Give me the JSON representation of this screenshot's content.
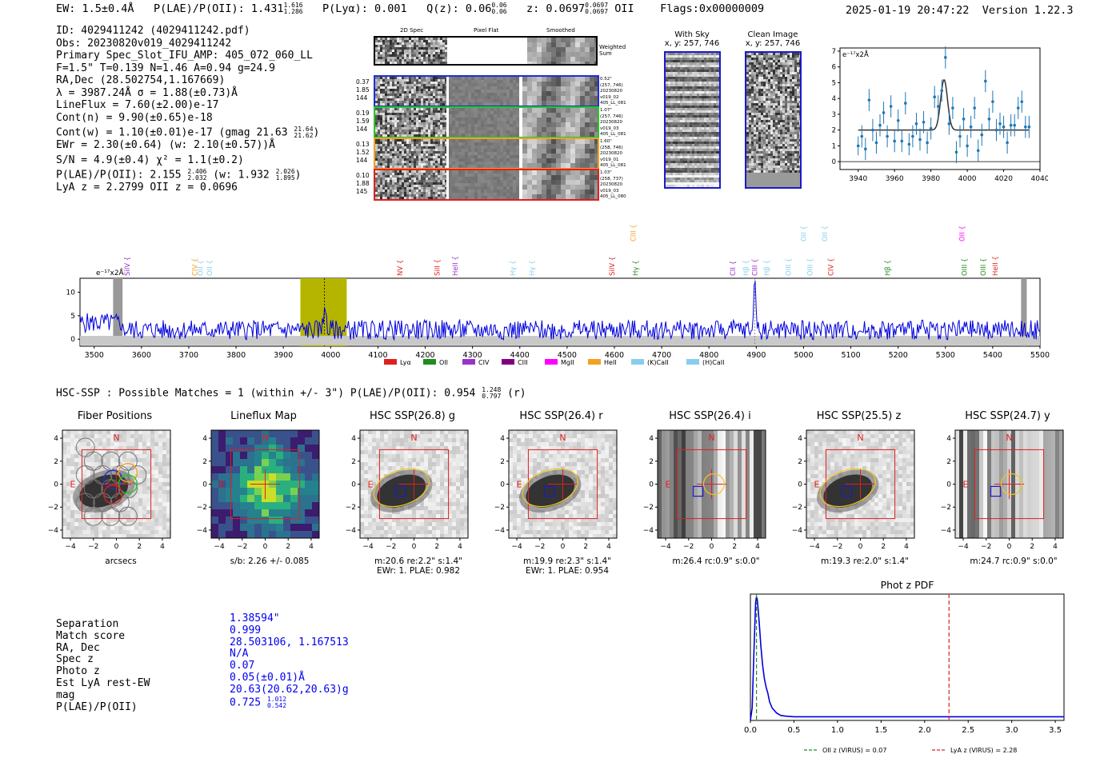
{
  "header": {
    "ew": "EW: 1.5±0.4Å",
    "plae_label": "P(LAE)/P(OII):",
    "plae_val": "1.431",
    "plae_hi": "1.616",
    "plae_lo": "1.286",
    "plya": "P(Lyα): 0.001",
    "qz_label": "Q(z): 0.06",
    "qz_hi": "0.06",
    "qz_lo": "0.06",
    "z_label": "z: 0.0697",
    "z_hi": "0.0697",
    "z_lo": "0.0697",
    "z_line": "OII",
    "flags": "Flags:0x00000009",
    "datetime": "2025-01-19 20:47:22",
    "version": "Version 1.22.3"
  },
  "info": {
    "id": "ID: 4029411242 (4029411242.pdf)",
    "obs": "Obs: 20230820v019_4029411242",
    "primary": "Primary Spec_Slot_IFU_AMP: 405_072_060_LL",
    "fiber": "F=1.5\"  T=0.139  N=1.46  A=0.94  g=24.9",
    "radec": "RA,Dec (28.502754,1.167669)",
    "lambda": "λ = 3987.24Å  σ = 1.88(±0.73)Å",
    "lineflux": "LineFlux = 7.60(±2.00)e-17",
    "contn": "Cont(n) = 9.90(±0.65)e-18",
    "contw": "Cont(w) = 1.10(±0.01)e-17 (gmag 21.63",
    "contw_hi": "21.64",
    "contw_lo": "21.62",
    "ewr": "EWr = 2.30(±0.64) (w: 2.10(±0.57))Å",
    "sn": "S/N = 4.9(±0.4)  χ² = 1.1(±0.2)",
    "plae": "P(LAE)/P(OII): 2.155",
    "plae_hi": "2.406",
    "plae_lo": "2.032",
    "plae_w": "(w: 1.932",
    "plae_w_hi": "2.026",
    "plae_w_lo": "1.895",
    "lyaz": "LyA z = 2.2799  OII z = 0.0696"
  },
  "stamps": {
    "col_2d": "2D Spec",
    "col_flat": "Pixel Flat",
    "col_smooth": "Smoothed",
    "weighted": "Weighted Sum",
    "rows": [
      {
        "a": "0.37",
        "b": "1.85",
        "c": "144",
        "n1": "0.52\"",
        "n2": "(257, 746)",
        "n3": "20230820",
        "n4": "v019_02",
        "n5": "405_LL_081",
        "color": "#1f2fd6"
      },
      {
        "a": "0.19",
        "b": "1.59",
        "c": "144",
        "n1": "1.07\"",
        "n2": "(257, 746)",
        "n3": "20230820",
        "n4": "v019_03",
        "n5": "405_LL_081",
        "color": "#22cc22"
      },
      {
        "a": "0.13",
        "b": "1.52",
        "c": "144",
        "n1": "1.60\"",
        "n2": "(258, 746)",
        "n3": "20230820",
        "n4": "v019_01",
        "n5": "405_LL_081",
        "color": "#f5a020"
      },
      {
        "a": "0.10",
        "b": "1.88",
        "c": "145",
        "n1": "1.03\"",
        "n2": "(258, 737)",
        "n3": "20230820",
        "n4": "v019_03",
        "n5": "405_LL_080",
        "color": "#e02020"
      }
    ]
  },
  "sky": {
    "with_sky": "With Sky",
    "with_sky_xy": "x, y: 257, 746",
    "clean": "Clean Image",
    "clean_xy": "x, y: 257, 746"
  },
  "hsc": {
    "summary": "HSC-SSP : Possible Matches = 1 (within +/- 3\")  P(LAE)/P(OII): 0.954",
    "summary_hi": "1.248",
    "summary_lo": "0.797",
    "summary_band": "(r)",
    "panels": [
      {
        "title": "Fiber Positions",
        "cap1": "arcsecs",
        "cap2": ""
      },
      {
        "title": "Lineflux Map",
        "cap1": "s/b: 2.26 +/- 0.085",
        "cap2": ""
      },
      {
        "title": "HSC SSP(26.8) g",
        "cap1": "m:20.6  re:2.2\"  s:1.4\"",
        "cap2": "EWr: 1. PLAE: 0.982"
      },
      {
        "title": "HSC SSP(26.4) r",
        "cap1": "m:19.9  re:2.3\"  s:1.4\"",
        "cap2": "EWr: 1. PLAE: 0.954"
      },
      {
        "title": "HSC SSP(26.4) i",
        "cap1": "m:26.4 rc:0.9\"  s:0.0\"",
        "cap2": ""
      },
      {
        "title": "HSC SSP(25.5) z",
        "cap1": "m:19.3  re:2.0\"  s:1.4\"",
        "cap2": ""
      },
      {
        "title": "HSC SSP(24.7) y",
        "cap1": "m:24.7 rc:0.9\"  s:0.0\"",
        "cap2": ""
      }
    ],
    "n_label": "N",
    "e_label": "E"
  },
  "match": {
    "labels": [
      "Separation",
      "Match score",
      "RA, Dec",
      "Spec z",
      "Photo z",
      "Est LyA rest-EW",
      "mag",
      "P(LAE)/P(OII)"
    ],
    "values": [
      "1.38594\"",
      "0.999",
      "28.503106, 1.167513",
      "N/A",
      "0.07",
      "0.05(±0.01)Å",
      "20.63(20.62,20.63)g",
      "0.725"
    ],
    "plae_hi": "1.012",
    "plae_lo": "0.542"
  },
  "chart_data": [
    {
      "type": "line",
      "title": "",
      "units_label": "e⁻¹⁷x2Å",
      "xlim": [
        3930,
        4040
      ],
      "ylim": [
        -0.5,
        7.2
      ],
      "xticks": [
        3940,
        3960,
        3980,
        4000,
        4020,
        4040
      ],
      "yticks": [
        0,
        1,
        2,
        3,
        4,
        5,
        6,
        7
      ],
      "data": {
        "x": [
          3940,
          3942,
          3944,
          3946,
          3948,
          3950,
          3952,
          3954,
          3956,
          3958,
          3960,
          3962,
          3964,
          3966,
          3968,
          3970,
          3972,
          3974,
          3976,
          3978,
          3980,
          3982,
          3984,
          3986,
          3988,
          3990,
          3992,
          3994,
          3996,
          3998,
          4000,
          4002,
          4004,
          4006,
          4008,
          4010,
          4012,
          4014,
          4016,
          4018,
          4020,
          4022,
          4024,
          4026,
          4028,
          4030,
          4032,
          4034
        ],
        "y": [
          1.0,
          1.6,
          0.8,
          3.9,
          2.0,
          1.2,
          2.3,
          3.1,
          1.6,
          3.5,
          1.3,
          2.6,
          1.3,
          3.7,
          1.1,
          1.6,
          2.4,
          1.4,
          2.5,
          1.2,
          2.1,
          4.1,
          3.5,
          4.5,
          6.6,
          2.4,
          3.4,
          0.6,
          1.6,
          2.7,
          1.0,
          2.2,
          3.4,
          0.7,
          1.7,
          5.1,
          2.7,
          3.8,
          2.0,
          2.4,
          2.2,
          1.2,
          2.3,
          2.3,
          3.4,
          3.8,
          2.2,
          2.2
        ],
        "err": [
          0.6,
          0.7,
          0.7,
          0.7,
          0.7,
          0.7,
          0.7,
          0.7,
          0.7,
          0.7,
          0.7,
          0.7,
          0.7,
          0.7,
          0.7,
          0.7,
          0.7,
          0.7,
          0.7,
          0.7,
          0.7,
          0.7,
          0.7,
          0.7,
          0.7,
          0.7,
          0.7,
          0.7,
          0.7,
          0.7,
          0.7,
          0.7,
          0.7,
          0.7,
          0.7,
          0.7,
          0.7,
          0.7,
          0.7,
          0.7,
          0.7,
          0.7,
          0.7,
          0.7,
          0.7,
          0.7,
          0.7,
          0.7
        ]
      },
      "model": {
        "continuum": 2.0,
        "center": 3987.24,
        "sigma": 1.88,
        "peak": 5.2
      }
    },
    {
      "type": "line",
      "title": "",
      "units_label": "e⁻¹⁷x2Å",
      "xlim": [
        3470,
        5500
      ],
      "ylim": [
        -1.5,
        13
      ],
      "xticks": [
        3500,
        3600,
        3700,
        3800,
        3900,
        4000,
        4100,
        4200,
        4300,
        4400,
        4500,
        4600,
        4700,
        4800,
        4900,
        5000,
        5100,
        5200,
        5300,
        5400,
        5500
      ],
      "yticks": [
        0,
        5,
        10
      ],
      "highlight": [
        3936,
        4034
      ],
      "line_marker": 3987,
      "mask_regions": [
        [
          3540,
          3560
        ],
        [
          5460,
          5472
        ]
      ],
      "emission_peak": {
        "x": 4897,
        "y": 12.2
      },
      "line_labels": [
        {
          "x": 3570,
          "text": "SiIV",
          "color": "#9932cc",
          "row": 2
        },
        {
          "x": 3713,
          "text": "CIV",
          "color": "#f5a020",
          "row": 2
        },
        {
          "x": 3725,
          "text": "OII",
          "color": "#87ceeb",
          "row": 2
        },
        {
          "x": 3744,
          "text": "OII",
          "color": "#87ceeb",
          "row": 2
        },
        {
          "x": 4147,
          "text": "NV",
          "color": "#e02020",
          "row": 2
        },
        {
          "x": 4225,
          "text": "SiII",
          "color": "#e02020",
          "row": 2
        },
        {
          "x": 4263,
          "text": "HeII",
          "color": "#9932cc",
          "row": 2
        },
        {
          "x": 4385,
          "text": "Hγ",
          "color": "#87ceeb",
          "row": 2
        },
        {
          "x": 4426,
          "text": "Hγ",
          "color": "#87ceeb",
          "row": 2
        },
        {
          "x": 4595,
          "text": "SiIV",
          "color": "#e02020",
          "row": 2
        },
        {
          "x": 4640,
          "text": "CIII",
          "color": "#f5a020",
          "row": 0
        },
        {
          "x": 4645,
          "text": "Hγ",
          "color": "#228b22",
          "row": 2
        },
        {
          "x": 4850,
          "text": "CII",
          "color": "#9932cc",
          "row": 2
        },
        {
          "x": 4878,
          "text": "Hβ",
          "color": "#87ceeb",
          "row": 2
        },
        {
          "x": 4897,
          "text": "CIII",
          "color": "#9932cc",
          "row": 2
        },
        {
          "x": 4922,
          "text": "Hβ",
          "color": "#87ceeb",
          "row": 2
        },
        {
          "x": 4968,
          "text": "OIII",
          "color": "#87ceeb",
          "row": 2
        },
        {
          "x": 5014,
          "text": "OIII",
          "color": "#87ceeb",
          "row": 2
        },
        {
          "x": 5000,
          "text": "OII",
          "color": "#87ceeb",
          "row": 0
        },
        {
          "x": 5045,
          "text": "OII",
          "color": "#87ceeb",
          "row": 0
        },
        {
          "x": 5058,
          "text": "CIV",
          "color": "#e02020",
          "row": 2
        },
        {
          "x": 5178,
          "text": "Hβ",
          "color": "#228b22",
          "row": 2
        },
        {
          "x": 5335,
          "text": "OII",
          "color": "#ff00ff",
          "row": 0
        },
        {
          "x": 5340,
          "text": "OIII",
          "color": "#228b22",
          "row": 2
        },
        {
          "x": 5380,
          "text": "OIII",
          "color": "#228b22",
          "row": 2
        },
        {
          "x": 5405,
          "text": "HeII",
          "color": "#e02020",
          "row": 2
        }
      ],
      "legend": [
        {
          "label": "Lyα",
          "color": "#e02020"
        },
        {
          "label": "OII",
          "color": "#228b22"
        },
        {
          "label": "CIV",
          "color": "#9932cc"
        },
        {
          "label": "CIII",
          "color": "#800080"
        },
        {
          "label": "MgII",
          "color": "#ff00ff"
        },
        {
          "label": "HeII",
          "color": "#f5a020"
        },
        {
          "label": "(K)CaII",
          "color": "#87ceeb"
        },
        {
          "label": "(H)CaII",
          "color": "#87ceeb"
        }
      ]
    },
    {
      "type": "line",
      "title": "Phot z PDF",
      "xlim": [
        0,
        3.6
      ],
      "xticks": [
        0.0,
        0.5,
        1.0,
        1.5,
        2.0,
        2.5,
        3.0,
        3.5
      ],
      "data": {
        "x": [
          0.0,
          0.02,
          0.04,
          0.06,
          0.07,
          0.08,
          0.1,
          0.12,
          0.14,
          0.16,
          0.18,
          0.2,
          0.22,
          0.25,
          0.3,
          0.35,
          0.4,
          0.5,
          0.6,
          0.8,
          1.0,
          1.5,
          2.0,
          2.5,
          3.0,
          3.6
        ],
        "y": [
          0.0,
          0.1,
          0.55,
          0.95,
          1.0,
          0.97,
          0.8,
          0.6,
          0.45,
          0.34,
          0.27,
          0.22,
          0.15,
          0.1,
          0.06,
          0.04,
          0.035,
          0.03,
          0.03,
          0.03,
          0.03,
          0.03,
          0.03,
          0.03,
          0.03,
          0.03
        ]
      },
      "markers": [
        {
          "x": 0.07,
          "color": "#228b22",
          "label": "OII z (VIRUS) = 0.07"
        },
        {
          "x": 2.28,
          "color": "#e02020",
          "label": "LyA z (VIRUS) = 2.28"
        }
      ]
    }
  ]
}
